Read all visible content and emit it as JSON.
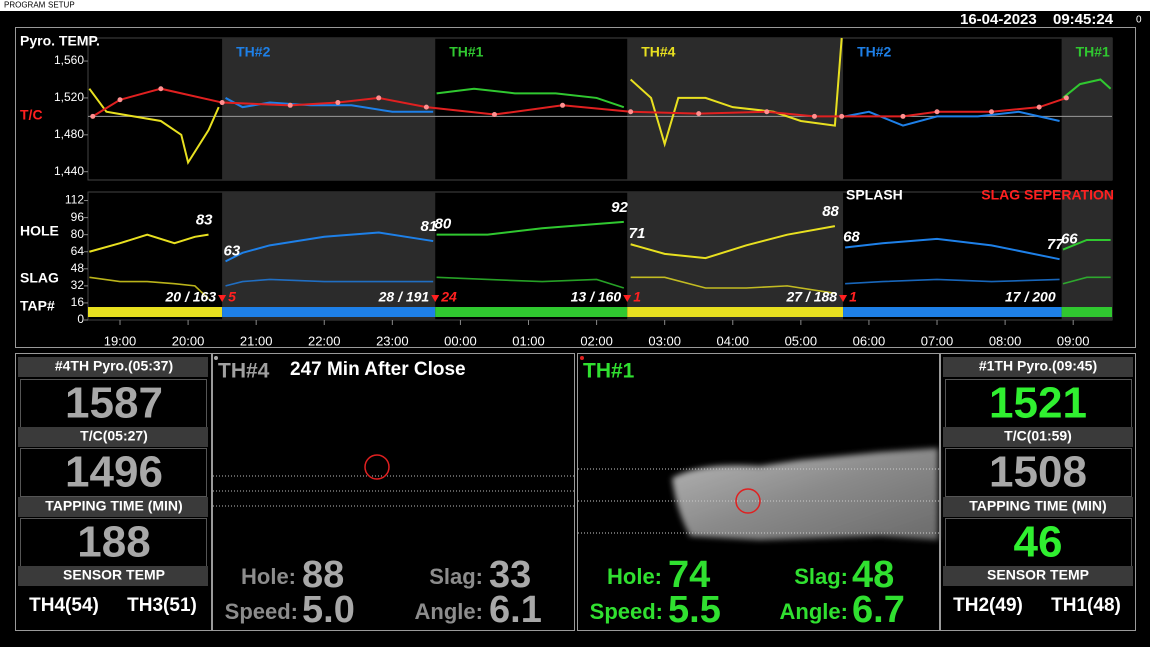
{
  "menu": [
    "PROGRAM",
    "SETUP"
  ],
  "header": {
    "date": "16-04-2023",
    "time": "09:45:24",
    "indicator": "0"
  },
  "chart_data": {
    "type": "line",
    "title": "Pyro. TEMP.",
    "lower_labels": [
      "HOLE",
      "SLAG",
      "TAP#"
    ],
    "annotations": [
      {
        "text": "SPLASH",
        "color": "#ffffff"
      },
      {
        "text": "SLAG SEPERATION",
        "color": "#ff2020"
      }
    ],
    "xlim": [
      18.53,
      33.57
    ],
    "xticks": [
      {
        "value": 19,
        "label": "19:00"
      },
      {
        "value": 20,
        "label": "20:00"
      },
      {
        "value": 21,
        "label": "21:00"
      },
      {
        "value": 22,
        "label": "22:00"
      },
      {
        "value": 23,
        "label": "23:00"
      },
      {
        "value": 24,
        "label": "00:00"
      },
      {
        "value": 25,
        "label": "01:00"
      },
      {
        "value": 26,
        "label": "02:00"
      },
      {
        "value": 27,
        "label": "03:00"
      },
      {
        "value": 28,
        "label": "04:00"
      },
      {
        "value": 29,
        "label": "05:00"
      },
      {
        "value": 30,
        "label": "06:00"
      },
      {
        "value": 31,
        "label": "07:00"
      },
      {
        "value": 32,
        "label": "08:00"
      },
      {
        "value": 33,
        "label": "09:00"
      }
    ],
    "ylim": [
      1431,
      1585
    ],
    "yticks": [
      {
        "value": 1440,
        "label": "1,440"
      },
      {
        "value": 1480,
        "label": "1,480"
      },
      {
        "value": 1520,
        "label": "1,520"
      },
      {
        "value": 1560,
        "label": "1,560"
      }
    ],
    "reference_line": 1500,
    "lower_ylim": [
      0,
      120
    ],
    "lower_yticks": [
      0,
      16,
      32,
      48,
      64,
      80,
      96,
      112
    ],
    "tc_series": {
      "name": "T/C",
      "color": "#e02020",
      "x": [
        18.6,
        19.0,
        19.6,
        20.5,
        21.5,
        22.2,
        22.8,
        23.5,
        24.5,
        25.5,
        26.5,
        27.5,
        28.5,
        29.2,
        29.6,
        30.5,
        31.0,
        31.8,
        32.5,
        32.9
      ],
      "values": [
        1500,
        1518,
        1530,
        1515,
        1512,
        1515,
        1520,
        1510,
        1502,
        1512,
        1505,
        1503,
        1505,
        1500,
        1500,
        1500,
        1505,
        1505,
        1510,
        1520
      ]
    },
    "segments": [
      {
        "start": 18.53,
        "end": 20.5,
        "shaded": false,
        "color": "#e8e020",
        "pyro_x": [
          18.55,
          18.8,
          19.2,
          19.6,
          19.9,
          20.0,
          20.3,
          20.45
        ],
        "pyro": [
          1530,
          1505,
          1500,
          1495,
          1480,
          1450,
          1485,
          1510
        ],
        "lower_x": [
          18.55,
          19.0,
          19.4,
          19.8,
          20.1,
          20.3
        ],
        "hole": [
          64,
          72,
          80,
          72,
          78,
          80
        ],
        "slag": [
          40,
          36,
          36,
          34,
          32,
          20
        ],
        "hole_label_end": 83,
        "tap_label": "20 / 163"
      },
      {
        "name": "TH#2",
        "start": 20.5,
        "end": 23.63,
        "shaded": true,
        "color": "#1e80e8",
        "pyro_x": [
          20.55,
          20.8,
          21.2,
          21.8,
          22.4,
          23.0,
          23.6
        ],
        "pyro": [
          1520,
          1510,
          1515,
          1512,
          1512,
          1505,
          1505
        ],
        "lower_x": [
          20.55,
          20.8,
          21.2,
          22.0,
          22.8,
          23.6
        ],
        "hole": [
          55,
          63,
          70,
          78,
          82,
          74
        ],
        "slag": [
          32,
          36,
          38,
          36,
          36,
          36
        ],
        "hole_label_start": 63,
        "hole_label_end": 81,
        "tap_label": "28 / 191",
        "tap_marker": "5"
      },
      {
        "name": "TH#1",
        "start": 23.63,
        "end": 26.45,
        "shaded": false,
        "color": "#30c830",
        "pyro_x": [
          23.65,
          24.2,
          24.8,
          25.4,
          26.0,
          26.4
        ],
        "pyro": [
          1525,
          1530,
          1525,
          1525,
          1520,
          1510
        ],
        "lower_x": [
          23.65,
          24.4,
          25.2,
          26.0,
          26.4
        ],
        "hole": [
          80,
          80,
          86,
          90,
          92
        ],
        "slag": [
          40,
          38,
          36,
          38,
          30
        ],
        "hole_label_start": 80,
        "hole_label_end": 92,
        "tap_label": "13 / 160",
        "tap_marker": "24"
      },
      {
        "name": "TH#4",
        "start": 26.45,
        "end": 29.62,
        "shaded": true,
        "color": "#e8e020",
        "pyro_x": [
          26.5,
          26.8,
          27.0,
          27.2,
          27.6,
          28.0,
          28.6,
          29.0,
          29.5,
          29.6
        ],
        "pyro": [
          1540,
          1520,
          1470,
          1520,
          1520,
          1510,
          1505,
          1495,
          1490,
          1585
        ],
        "lower_x": [
          26.5,
          27.0,
          27.6,
          28.2,
          28.8,
          29.5
        ],
        "hole": [
          71,
          62,
          58,
          70,
          80,
          88
        ],
        "slag": [
          40,
          40,
          30,
          30,
          32,
          25
        ],
        "hole_label_start": 71,
        "hole_label_end": 88,
        "tap_label": "27 / 188",
        "tap_marker": "1"
      },
      {
        "name": "TH#2",
        "start": 29.62,
        "end": 32.83,
        "shaded": false,
        "color": "#1e80e8",
        "pyro_x": [
          29.65,
          30.0,
          30.5,
          31.0,
          31.6,
          32.2,
          32.8
        ],
        "pyro": [
          1500,
          1505,
          1490,
          1500,
          1500,
          1505,
          1495
        ],
        "lower_x": [
          29.65,
          30.2,
          31.0,
          31.8,
          32.8
        ],
        "hole": [
          68,
          72,
          76,
          70,
          57
        ],
        "slag": [
          34,
          36,
          38,
          36,
          38
        ],
        "hole_label_start": 68,
        "hole_label_end": 77,
        "tap_label": "17 / 200",
        "tap_marker": "1"
      },
      {
        "name": "TH#1",
        "start": 32.83,
        "end": 33.57,
        "shaded": true,
        "color": "#30c830",
        "pyro_x": [
          32.85,
          33.1,
          33.4,
          33.55
        ],
        "pyro": [
          1520,
          1535,
          1540,
          1530
        ],
        "lower_x": [
          32.85,
          33.2,
          33.55
        ],
        "hole": [
          66,
          75,
          75
        ],
        "slag": [
          34,
          40,
          40
        ],
        "hole_label_start": 66
      }
    ]
  },
  "left_panel": {
    "readings": [
      {
        "label": "#4TH Pyro.(05:37)",
        "value": 1587,
        "color": "#a8a8a8"
      },
      {
        "label": "T/C(05:27)",
        "value": 1496,
        "color": "#a8a8a8"
      },
      {
        "label": "TAPPING TIME (MIN)",
        "value": 188,
        "color": "#a8a8a8"
      }
    ],
    "sensor_label": "SENSOR TEMP",
    "sensors": [
      "TH4(54)",
      "TH3(51)"
    ]
  },
  "left_camera": {
    "title": "TH#4",
    "subtitle": "247 Min After Close",
    "title_color": "#a0a0a0",
    "label_color": "#8c8c8c",
    "value_color": "#a8a8a8",
    "stats": [
      {
        "label": "Hole:",
        "value": 88
      },
      {
        "label": "Slag:",
        "value": 33
      },
      {
        "label": "Speed:",
        "value": "5.0"
      },
      {
        "label": "Angle:",
        "value": "6.1"
      }
    ]
  },
  "right_camera": {
    "title": "TH#1",
    "title_color": "#30e030",
    "label_color": "#30e030",
    "value_color": "#30e030",
    "stats": [
      {
        "label": "Hole:",
        "value": 74
      },
      {
        "label": "Slag:",
        "value": 48
      },
      {
        "label": "Speed:",
        "value": "5.5"
      },
      {
        "label": "Angle:",
        "value": "6.7"
      }
    ]
  },
  "right_panel": {
    "readings": [
      {
        "label": "#1TH Pyro.(09:45)",
        "value": 1521,
        "color": "#30f030"
      },
      {
        "label": "T/C(01:59)",
        "value": 1508,
        "color": "#a8a8a8"
      },
      {
        "label": "TAPPING TIME (MIN)",
        "value": 46,
        "color": "#30f030"
      }
    ],
    "sensor_label": "SENSOR TEMP",
    "sensors": [
      "TH2(49)",
      "TH1(48)"
    ]
  }
}
